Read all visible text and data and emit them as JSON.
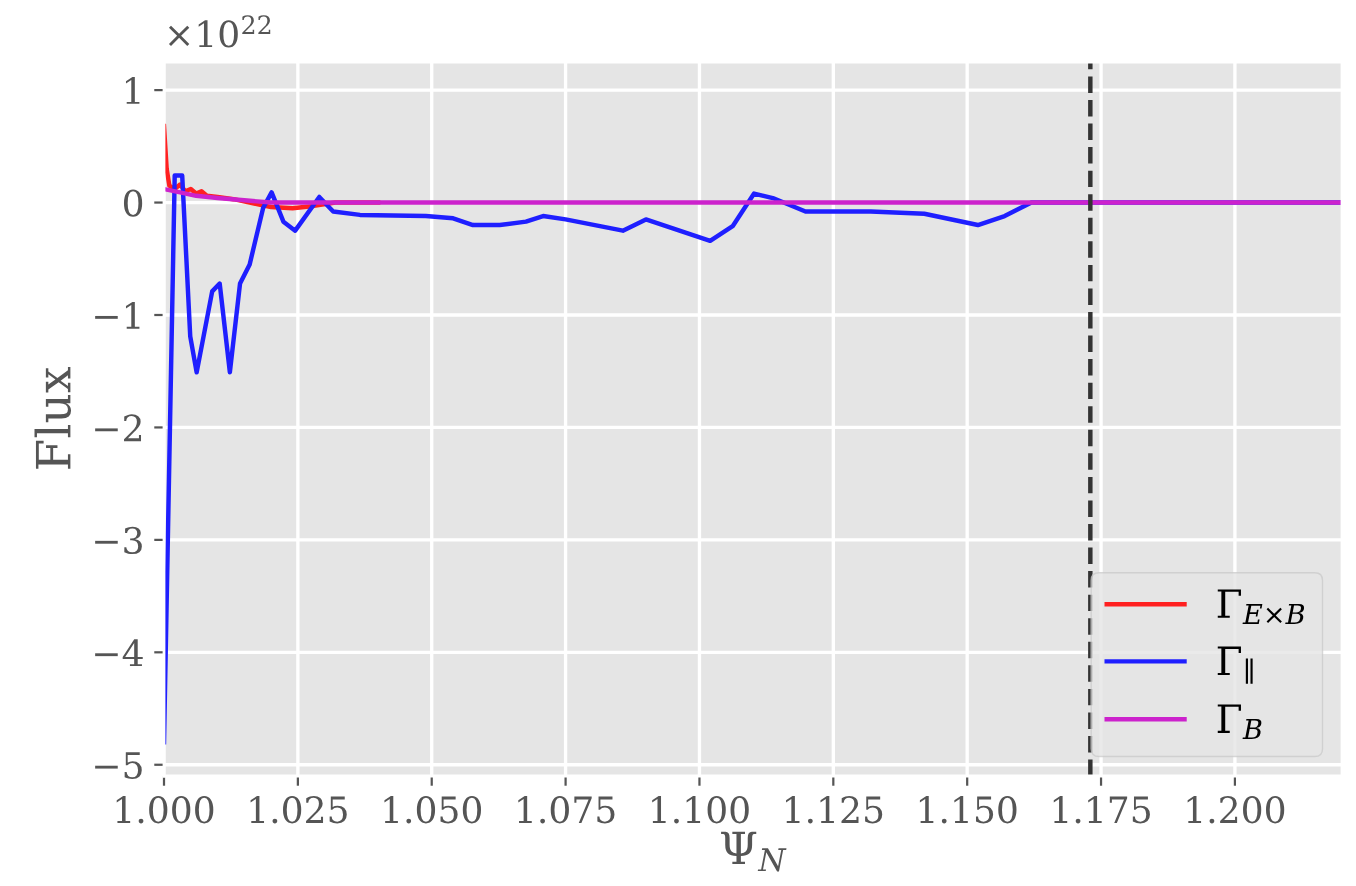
{
  "chart_data": {
    "type": "line",
    "xlabel": "Ψ$_{N}$",
    "ylabel": "Flux",
    "annotations": [
      "×10$^{22}$"
    ],
    "xlim": [
      1.0,
      1.22
    ],
    "ylim": [
      -5.1,
      1.25
    ],
    "xticks": [
      {
        "value": 1.0,
        "label": "1.000"
      },
      {
        "value": 1.025,
        "label": "1.025"
      },
      {
        "value": 1.05,
        "label": "1.050"
      },
      {
        "value": 1.075,
        "label": "1.075"
      },
      {
        "value": 1.1,
        "label": "1.100"
      },
      {
        "value": 1.125,
        "label": "1.125"
      },
      {
        "value": 1.15,
        "label": "1.150"
      },
      {
        "value": 1.175,
        "label": "1.175"
      },
      {
        "value": 1.2,
        "label": "1.200"
      }
    ],
    "yticks": [
      {
        "value": -5,
        "label": "−5"
      },
      {
        "value": -4,
        "label": "−4"
      },
      {
        "value": -3,
        "label": "−3"
      },
      {
        "value": -2,
        "label": "−2"
      },
      {
        "value": -1,
        "label": "−1"
      },
      0,
      1
    ],
    "grid": true,
    "legend": "bottom right",
    "line_style": "solid",
    "marker": "none",
    "ref_lines": [
      {
        "axis": "x",
        "value": 1.173,
        "color": "#333333",
        "line_style": "dashed"
      }
    ],
    "series": [
      {
        "name": "Γ$_{E×B}$",
        "color": "#ff2020",
        "x": [
          1.0,
          1.0005,
          1.001,
          1.002,
          1.003,
          1.004,
          1.005,
          1.006,
          1.007,
          1.008,
          1.01,
          1.013,
          1.016,
          1.02,
          1.024,
          1.028,
          1.032,
          1.04
        ],
        "values": [
          0.68,
          0.3,
          0.15,
          0.12,
          0.16,
          0.1,
          0.12,
          0.08,
          0.1,
          0.06,
          0.05,
          0.03,
          0.0,
          -0.04,
          -0.05,
          -0.03,
          0.0,
          0.0
        ]
      },
      {
        "name": "Γ$_{∥}$",
        "color": "#1f1fff",
        "x": [
          1.0,
          1.002,
          1.0034,
          1.0049,
          1.0061,
          1.009,
          1.0104,
          1.0123,
          1.0142,
          1.016,
          1.0185,
          1.0201,
          1.0223,
          1.0245,
          1.029,
          1.0316,
          1.0366,
          1.0489,
          1.054,
          1.0577,
          1.0627,
          1.0676,
          1.0708,
          1.075,
          1.0857,
          1.09,
          1.102,
          1.1062,
          1.1102,
          1.1137,
          1.1198,
          1.132,
          1.142,
          1.152,
          1.157,
          1.162,
          1.22
        ],
        "values": [
          -4.8,
          0.24,
          0.24,
          -1.19,
          -1.51,
          -0.79,
          -0.72,
          -1.51,
          -0.72,
          -0.55,
          -0.05,
          0.09,
          -0.17,
          -0.25,
          0.05,
          -0.08,
          -0.11,
          -0.12,
          -0.14,
          -0.2,
          -0.2,
          -0.17,
          -0.12,
          -0.15,
          -0.25,
          -0.15,
          -0.34,
          -0.21,
          0.08,
          0.04,
          -0.08,
          -0.08,
          -0.1,
          -0.2,
          -0.12,
          0.0,
          0.0
        ]
      },
      {
        "name": "Γ$_{B}$",
        "color": "#cc22cc",
        "x": [
          1.0,
          1.003,
          1.006,
          1.01,
          1.015,
          1.02,
          1.22
        ],
        "values": [
          0.12,
          0.09,
          0.06,
          0.04,
          0.02,
          0.0,
          0.0
        ]
      }
    ]
  }
}
